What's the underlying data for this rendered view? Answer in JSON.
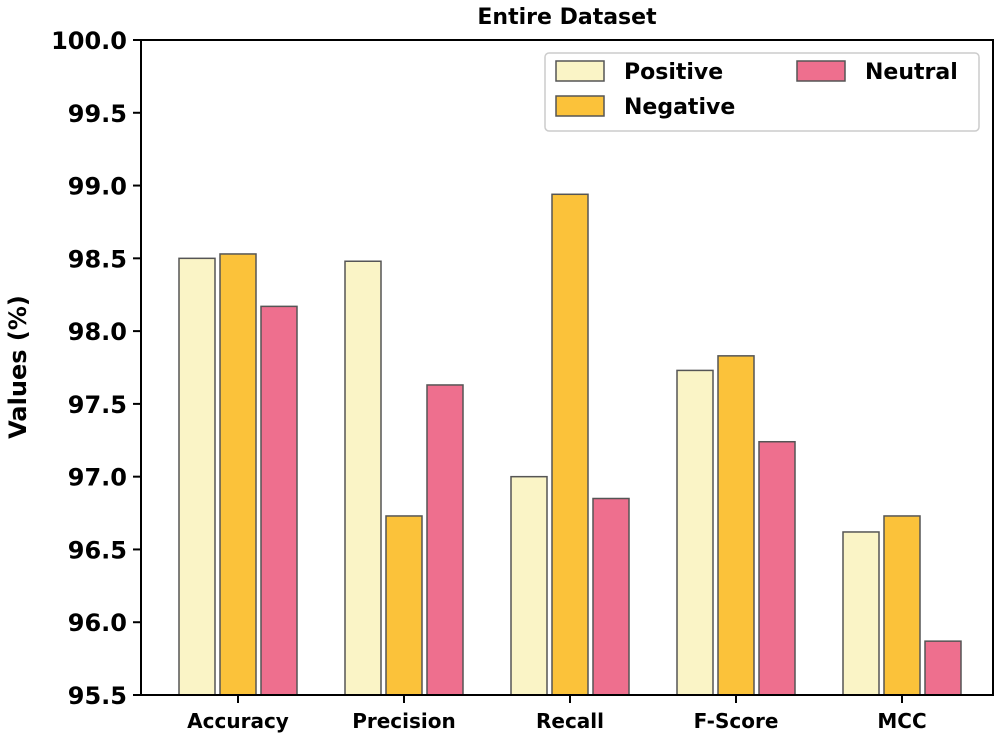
{
  "chart_data": {
    "type": "bar",
    "title": "Entire Dataset",
    "xlabel": "",
    "ylabel": "Values (%)",
    "ylim": [
      95.5,
      100.0
    ],
    "yticks": [
      "95.5",
      "96.0",
      "96.5",
      "97.0",
      "97.5",
      "98.0",
      "98.5",
      "99.0",
      "99.5",
      "100.0"
    ],
    "categories": [
      "Accuracy",
      "Precision",
      "Recall",
      "F-Score",
      "MCC"
    ],
    "series": [
      {
        "name": "Positive",
        "color": "#FAF4C6",
        "values": [
          98.5,
          98.48,
          97.0,
          97.73,
          96.62
        ]
      },
      {
        "name": "Negative",
        "color": "#FBC23A",
        "values": [
          98.53,
          96.73,
          98.94,
          97.83,
          96.73
        ]
      },
      {
        "name": "Neutral",
        "color": "#EE6F8E",
        "values": [
          98.17,
          97.63,
          96.85,
          97.24,
          95.87
        ]
      }
    ],
    "grid": false,
    "legend": "top-right"
  }
}
